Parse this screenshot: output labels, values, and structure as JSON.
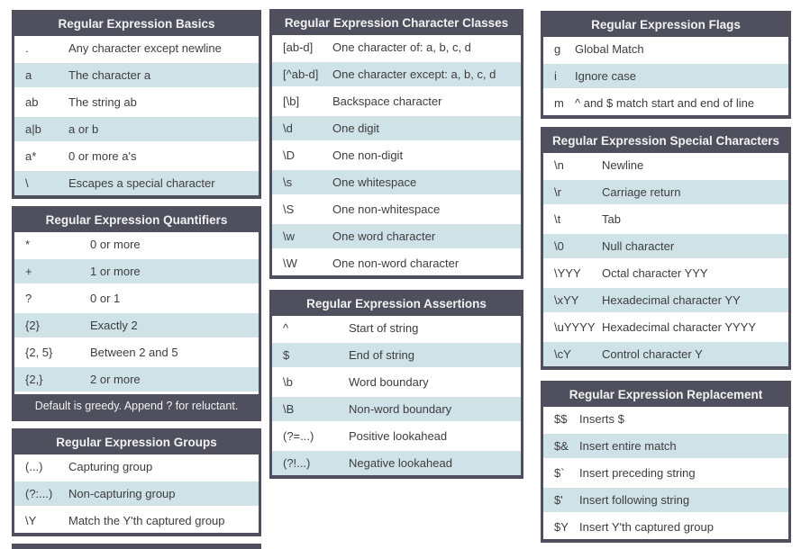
{
  "theme": {
    "header_bg": "#4f4f5e",
    "header_text": "#f2f2f2",
    "row_bg": "#ffffff",
    "row_alt_bg": "#cfe2e8",
    "body_text": "#3d3d3d",
    "page_bg": "#ffffff"
  },
  "columns": [
    {
      "tables": [
        {
          "id": "basics",
          "title": "Regular Expression Basics",
          "rows": [
            {
              "pattern": ".",
              "description": "Any character except newline"
            },
            {
              "pattern": "a",
              "description": "The character a"
            },
            {
              "pattern": "ab",
              "description": "The string ab"
            },
            {
              "pattern": "a|b",
              "description": "a or b"
            },
            {
              "pattern": "a*",
              "description": "0 or more a's"
            },
            {
              "pattern": "\\",
              "description": "Escapes a special character"
            }
          ]
        },
        {
          "id": "quantifiers",
          "title": "Regular Expression Quantifiers",
          "rows": [
            {
              "pattern": "*",
              "description": "0 or more"
            },
            {
              "pattern": "+",
              "description": "1 or more"
            },
            {
              "pattern": "?",
              "description": "0 or 1"
            },
            {
              "pattern": "{2}",
              "description": "Exactly 2"
            },
            {
              "pattern": "{2, 5}",
              "description": "Between 2 and 5"
            },
            {
              "pattern": "{2,}",
              "description": "2 or more"
            }
          ],
          "footer": "Default is greedy. Append ? for reluctant."
        },
        {
          "id": "groups",
          "title": "Regular Expression Groups",
          "rows": [
            {
              "pattern": "(...)",
              "description": "Capturing group"
            },
            {
              "pattern": "(?:...)",
              "description": "Non-capturing group"
            },
            {
              "pattern": "\\Y",
              "description": "Match the Y'th captured group"
            }
          ]
        },
        {
          "id": "cutoff",
          "title": "",
          "rows": [],
          "partial_header": true
        }
      ]
    },
    {
      "tables": [
        {
          "id": "charclasses",
          "title": "Regular Expression Character Classes",
          "rows": [
            {
              "pattern": "[ab-d]",
              "description": "One character of: a, b, c, d"
            },
            {
              "pattern": "[^ab-d]",
              "description": "One character except: a, b, c, d"
            },
            {
              "pattern": "[\\b]",
              "description": "Backspace character"
            },
            {
              "pattern": "\\d",
              "description": "One digit"
            },
            {
              "pattern": "\\D",
              "description": "One non-digit"
            },
            {
              "pattern": "\\s",
              "description": "One whitespace"
            },
            {
              "pattern": "\\S",
              "description": "One non-whitespace"
            },
            {
              "pattern": "\\w",
              "description": "One word character"
            },
            {
              "pattern": "\\W",
              "description": "One non-word character"
            }
          ]
        },
        {
          "id": "assertions",
          "title": "Regular Expression Assertions",
          "rows": [
            {
              "pattern": "^",
              "description": "Start of string"
            },
            {
              "pattern": "$",
              "description": "End of string"
            },
            {
              "pattern": "\\b",
              "description": "Word boundary"
            },
            {
              "pattern": "\\B",
              "description": "Non-word boundary"
            },
            {
              "pattern": "(?=...)",
              "description": "Positive lookahead"
            },
            {
              "pattern": "(?!...)",
              "description": "Negative lookahead"
            }
          ]
        }
      ]
    },
    {
      "tables": [
        {
          "id": "flags",
          "title": "Regular Expression Flags",
          "rows": [
            {
              "pattern": "g",
              "description": "Global Match"
            },
            {
              "pattern": "i",
              "description": "Ignore case"
            },
            {
              "pattern": "m",
              "description": "^ and $ match start and end of line"
            }
          ]
        },
        {
          "id": "special",
          "title": "Regular Expression Special Characters",
          "rows": [
            {
              "pattern": "\\n",
              "description": "Newline"
            },
            {
              "pattern": "\\r",
              "description": "Carriage return"
            },
            {
              "pattern": "\\t",
              "description": "Tab"
            },
            {
              "pattern": "\\0",
              "description": "Null character"
            },
            {
              "pattern": "\\YYY",
              "description": "Octal character YYY"
            },
            {
              "pattern": "\\xYY",
              "description": "Hexadecimal character YY"
            },
            {
              "pattern": "\\uYYYY",
              "description": "Hexadecimal character YYYY"
            },
            {
              "pattern": "\\cY",
              "description": "Control character Y"
            }
          ]
        },
        {
          "id": "replacement",
          "title": "Regular Expression Replacement",
          "rows": [
            {
              "pattern": "$$",
              "description": "Inserts $"
            },
            {
              "pattern": "$&",
              "description": "Insert entire match"
            },
            {
              "pattern": "$`",
              "description": "Insert preceding string"
            },
            {
              "pattern": "$'",
              "description": "Insert following string"
            },
            {
              "pattern": "$Y",
              "description": "Insert Y'th captured group"
            }
          ]
        }
      ]
    }
  ]
}
